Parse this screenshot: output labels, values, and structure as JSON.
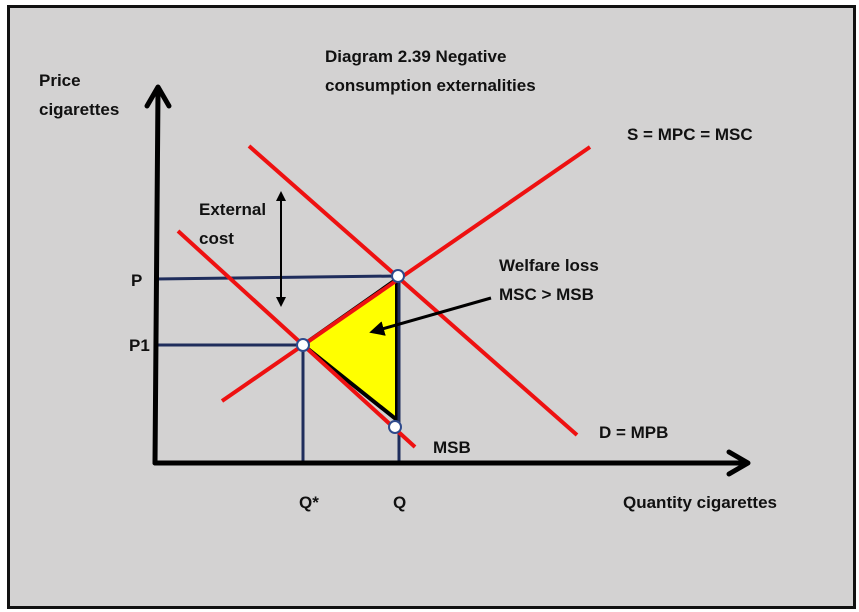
{
  "title": [
    "Diagram 2.39 Negative",
    "consumption externalities"
  ],
  "axes": {
    "y_label": [
      "Price",
      "cigarettes"
    ],
    "x_label": "Quantity cigarettes",
    "y_ticks": [
      "P",
      "P1"
    ],
    "x_ticks": [
      "Q*",
      "Q"
    ]
  },
  "curves": {
    "supply": "S = MPC = MSC",
    "demand": "D = MPB",
    "msb": "MSB"
  },
  "annotations": {
    "external_cost": [
      "External",
      "cost"
    ],
    "welfare_loss": [
      "Welfare loss",
      "MSC > MSB"
    ]
  },
  "colors": {
    "background": "#d3d2d2",
    "curve": "#ee1111",
    "guide": "#1f2d5c",
    "welfare_area": "#ffff00",
    "axis": "#000000"
  }
}
